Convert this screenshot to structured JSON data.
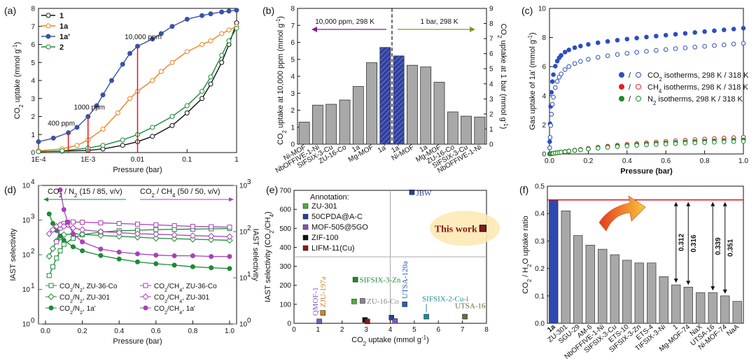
{
  "chart_data": [
    {
      "panel": "a",
      "type": "line",
      "panel_label": "(a)",
      "xlabel": "Pressure (bar)",
      "ylabel": "CO2 uptake (mmol g-1)",
      "xscale": "log",
      "xlim": [
        0.0001,
        1
      ],
      "ylim": [
        0,
        8
      ],
      "xticks": [
        "1E-4",
        "1E-3",
        "0.01",
        "0.1",
        "1"
      ],
      "yticks": [
        "0",
        "1",
        "2",
        "3",
        "4",
        "5",
        "6",
        "7",
        "8"
      ],
      "legend": [
        "1",
        "1a",
        "1a'",
        "2"
      ],
      "annotations": [
        "400 ppm",
        "1000 ppm",
        "10,000 ppm"
      ],
      "markers_p": [
        0.0004,
        0.001,
        0.01
      ],
      "series": [
        {
          "name": "1",
          "color": "#111111",
          "fill": false,
          "x": [
            0.0001,
            0.0003,
            0.001,
            0.002,
            0.005,
            0.01,
            0.02,
            0.05,
            0.1,
            0.2,
            0.3,
            0.5,
            0.7,
            1
          ],
          "y": [
            0.05,
            0.08,
            0.12,
            0.2,
            0.4,
            0.6,
            0.9,
            1.5,
            2.2,
            3.0,
            3.8,
            5.0,
            6.0,
            7.2
          ]
        },
        {
          "name": "1a",
          "color": "#f07f1e",
          "fill": false,
          "x": [
            0.0001,
            0.0003,
            0.0006,
            0.001,
            0.002,
            0.004,
            0.007,
            0.01,
            0.02,
            0.03,
            0.05,
            0.1,
            0.2,
            0.3,
            0.5,
            0.7,
            1
          ],
          "y": [
            0.1,
            0.2,
            0.4,
            0.7,
            1.3,
            2.2,
            3.0,
            3.4,
            4.0,
            4.5,
            5.0,
            5.6,
            6.0,
            6.2,
            6.6,
            6.8,
            7.0
          ]
        },
        {
          "name": "1a'",
          "color": "#3a52a6",
          "fill": true,
          "x": [
            0.0001,
            0.0002,
            0.0004,
            0.0006,
            0.001,
            0.0015,
            0.002,
            0.003,
            0.005,
            0.007,
            0.01,
            0.02,
            0.03,
            0.05,
            0.1,
            0.2,
            0.3,
            0.5,
            0.7,
            1
          ],
          "y": [
            0.6,
            0.8,
            1.1,
            1.4,
            2.0,
            2.6,
            3.2,
            4.0,
            4.9,
            5.5,
            5.9,
            6.3,
            6.6,
            7.0,
            7.4,
            7.6,
            7.7,
            7.8,
            7.85,
            7.9
          ]
        },
        {
          "name": "2",
          "color": "#1c8a36",
          "fill": false,
          "x": [
            0.0001,
            0.0003,
            0.001,
            0.002,
            0.005,
            0.01,
            0.02,
            0.05,
            0.1,
            0.2,
            0.3,
            0.5,
            0.7,
            1
          ],
          "y": [
            0.05,
            0.1,
            0.25,
            0.4,
            0.7,
            1.0,
            1.4,
            2.0,
            2.6,
            3.4,
            4.2,
            5.4,
            6.2,
            6.9
          ]
        }
      ]
    },
    {
      "panel": "b",
      "type": "bar",
      "panel_label": "(b)",
      "ylabel_left": "CO2 uptake at 10,000 ppm (mmol g-1)",
      "ylabel_right": "CO2 uptake at 1 bar (mmol g-1)",
      "ylim_left": [
        0,
        8
      ],
      "ylim_right": [
        0,
        9
      ],
      "yticks_left": [
        "0",
        "1",
        "2",
        "3",
        "4",
        "5",
        "6",
        "7",
        "8"
      ],
      "yticks_right": [
        "0",
        "1",
        "2",
        "3",
        "4",
        "5",
        "6",
        "7",
        "8",
        "9"
      ],
      "left_note": "10,000 ppm, 298 K",
      "right_note": "1 bar, 298 K",
      "categories": [
        "Ni-MOF",
        "NbOFFIVE-1-Ni",
        "SIFSIX-3-Cu",
        "ZU-16-Co",
        "1a",
        "Mg-MOF",
        "1a'",
        "1a'",
        "Ni-MOF",
        "1a",
        "Mg-MOF",
        "ZU-16-Co",
        "SIFSIX-3-Cu",
        "NbOFFIVE-1-Ni"
      ],
      "values": [
        1.3,
        2.3,
        2.35,
        2.6,
        3.4,
        4.8,
        5.7,
        5.2,
        4.65,
        4.55,
        3.65,
        1.9,
        1.65,
        1.6
      ],
      "highlight": [
        6,
        7
      ]
    },
    {
      "panel": "c",
      "type": "scatter",
      "panel_label": "(c)",
      "xlabel": "Pressure (bar)",
      "ylabel": "Gas uptake of 1a' (mmol g-1)",
      "xlim": [
        0,
        1
      ],
      "ylim": [
        0,
        10
      ],
      "xticks": [
        "0.0",
        "0.2",
        "0.4",
        "0.6",
        "0.8",
        "1.0"
      ],
      "yticks": [
        "0",
        "2",
        "4",
        "6",
        "8",
        "10"
      ],
      "legend": [
        "CO2 isotherms, 298 K / 318 K",
        "CH4 isotherms, 298 K / 318 K",
        "N2 isotherms, 298 K / 318 K"
      ],
      "series": [
        {
          "name": "CO2 298 K",
          "color": "#2d4ec0",
          "fill": "full",
          "ymax": 8.7,
          "k": 0.008,
          "lin": 1.1
        },
        {
          "name": "CO2 318 K",
          "color": "#2d4ec0",
          "fill": "none",
          "ymax": 7.7,
          "k": 0.015,
          "lin": 0.9
        },
        {
          "name": "CH4 298 K",
          "color": "#e02020",
          "fill": "half",
          "ymax": 2.5,
          "k": 0.8,
          "lin": 0
        },
        {
          "name": "CH4 318 K",
          "color": "#e02020",
          "fill": "none",
          "ymax": 2.3,
          "k": 1.0,
          "lin": 0
        },
        {
          "name": "N2 298 K",
          "color": "#1a8a2a",
          "fill": "half",
          "ymax": 1.6,
          "k": 1.5,
          "lin": 0
        },
        {
          "name": "N2 318 K",
          "color": "#1a8a2a",
          "fill": "none",
          "ymax": 1.4,
          "k": 1.6,
          "lin": 0
        }
      ]
    },
    {
      "panel": "d",
      "type": "line",
      "panel_label": "(d)",
      "xlabel": "Pressure (bar)",
      "ylabel_left": "IAST selectivity",
      "ylabel_right": "IAST selectivity",
      "xlim": [
        0,
        1
      ],
      "ylim_left_log": [
        0,
        4
      ],
      "ylim_right_log": [
        0,
        3
      ],
      "xticks": [
        "0.0",
        "0.2",
        "0.4",
        "0.6",
        "0.8",
        "1.0"
      ],
      "left_title": "CO2 / N2 (15 / 85, v/v)",
      "right_title": "CO2 / CH4 (50 / 50, v/v)",
      "legend": [
        "CO2/N2, ZU-36-Co",
        "CO2/N2, ZU-301",
        "CO2/N2, 1a'",
        "CO2/CH4, ZU-36-Co",
        "CO2/CH4, ZU-301",
        "CO2/CH4, 1a'"
      ],
      "series": [
        {
          "name": "CO2/N2, ZU-36-Co",
          "axis": "left",
          "color": "#1c8a36",
          "marker": "square",
          "fill": false,
          "x": [
            0.02,
            0.04,
            0.06,
            0.08,
            0.1,
            0.15,
            0.2,
            0.3,
            0.4,
            0.5,
            0.6,
            0.7,
            0.8,
            0.9,
            1.0
          ],
          "y": [
            25,
            45,
            80,
            130,
            200,
            300,
            380,
            450,
            490,
            510,
            530,
            540,
            550,
            560,
            570
          ]
        },
        {
          "name": "CO2/N2, ZU-301",
          "axis": "left",
          "color": "#1c8a36",
          "marker": "diamond",
          "fill": false,
          "x": [
            0.02,
            0.04,
            0.06,
            0.08,
            0.1,
            0.15,
            0.2,
            0.3,
            0.4,
            0.5,
            0.6,
            0.7,
            0.8,
            0.9,
            1.0
          ],
          "y": [
            90,
            150,
            250,
            320,
            380,
            400,
            390,
            360,
            340,
            320,
            300,
            290,
            280,
            270,
            260
          ]
        },
        {
          "name": "CO2/N2, 1a'",
          "axis": "left",
          "color": "#1c8a36",
          "marker": "circle",
          "fill": true,
          "x": [
            0.02,
            0.04,
            0.06,
            0.08,
            0.1,
            0.15,
            0.2,
            0.3,
            0.4,
            0.5,
            0.6,
            0.7,
            0.8,
            0.9,
            1.0
          ],
          "y": [
            1500,
            800,
            500,
            350,
            260,
            170,
            130,
            95,
            75,
            62,
            55,
            50,
            45,
            42,
            40
          ]
        },
        {
          "name": "CO2/CH4, ZU-36-Co",
          "axis": "right",
          "color": "#a642b8",
          "marker": "square",
          "fill": false,
          "x": [
            0.06,
            0.08,
            0.1,
            0.12,
            0.15,
            0.2,
            0.3,
            0.4,
            0.5,
            0.6,
            0.7,
            0.8,
            0.9,
            1.0
          ],
          "y": [
            60,
            120,
            150,
            160,
            162,
            160,
            155,
            150,
            145,
            140,
            135,
            130,
            128,
            125
          ]
        },
        {
          "name": "CO2/CH4, ZU-301",
          "axis": "right",
          "color": "#a642b8",
          "marker": "diamond",
          "fill": false,
          "x": [
            0.02,
            0.04,
            0.06,
            0.08,
            0.1,
            0.15,
            0.2,
            0.3,
            0.4,
            0.5,
            0.6,
            0.7,
            0.8,
            0.9,
            1.0
          ],
          "y": [
            90,
            110,
            130,
            140,
            130,
            120,
            110,
            100,
            95,
            90,
            88,
            85,
            82,
            80,
            78
          ]
        },
        {
          "name": "CO2/CH4, 1a'",
          "axis": "right",
          "color": "#a642b8",
          "marker": "circle",
          "fill": true,
          "x": [
            0.08,
            0.1,
            0.12,
            0.15,
            0.2,
            0.3,
            0.4,
            0.5,
            0.6,
            0.7,
            0.8,
            0.9,
            1.0
          ],
          "y": [
            800,
            300,
            160,
            90,
            60,
            42,
            36,
            33,
            31,
            30,
            30,
            29,
            29
          ]
        }
      ]
    },
    {
      "panel": "e",
      "type": "scatter",
      "panel_label": "(e)",
      "xlabel": "CO2 uptake (mmol g-1)",
      "ylabel": "IAST selectivity (CO2/CH4)",
      "xlim": [
        0,
        8
      ],
      "ylim": [
        0,
        700
      ],
      "xticks": [
        "0",
        "1",
        "2",
        "3",
        "4",
        "5",
        "6",
        "7",
        "8"
      ],
      "yticks": [
        "0",
        "100",
        "200",
        "300",
        "400",
        "500",
        "600",
        "700"
      ],
      "annotation_title": "Annotation:",
      "annotation_items": [
        {
          "label": "ZU-301",
          "color": "#4caf3a"
        },
        {
          "label": "50CPDA@A-C",
          "color": "#2b3f9a"
        },
        {
          "label": "MOF-505@5GO",
          "color": "#7e57c2"
        },
        {
          "label": "ZIF-100",
          "color": "#111111"
        },
        {
          "label": "LIFM-11(Cu)",
          "color": "#8b1a1a"
        }
      ],
      "highlight_label": "This work",
      "points": [
        {
          "label": "JBW",
          "x": 4.9,
          "y": 690,
          "color": "#2b3f9a"
        },
        {
          "label": "This work",
          "x": 7.85,
          "y": 500,
          "color": "#8b1a1a"
        },
        {
          "label": "SIFSIX-3-Zn",
          "x": 2.55,
          "y": 230,
          "color": "#1c8a36"
        },
        {
          "label": "",
          "x": 2.5,
          "y": 115,
          "color": "#4caf3a"
        },
        {
          "label": "ZU-16-Co",
          "x": 2.85,
          "y": 118,
          "color": "#888888"
        },
        {
          "label": "UTSA-120a",
          "x": 4.6,
          "y": 100,
          "color": "#2a5fb0"
        },
        {
          "label": "SIFSIX-2-Cu-i",
          "x": 5.5,
          "y": 35,
          "color": "#1e8c96"
        },
        {
          "label": "UTSA-16",
          "x": 7.1,
          "y": 35,
          "color": "#6b6b3a"
        },
        {
          "label": "QMOF-1",
          "x": 1.05,
          "y": 10,
          "color": "#7e57c2"
        },
        {
          "label": "ZJU-197a",
          "x": 1.2,
          "y": 55,
          "color": "#c8872a"
        },
        {
          "label": "",
          "x": 2.95,
          "y": 18,
          "color": "#111111"
        },
        {
          "label": "",
          "x": 3.05,
          "y": 10,
          "color": "#8b1a1a"
        },
        {
          "label": "",
          "x": 4.05,
          "y": 30,
          "color": "#2b3f9a"
        },
        {
          "label": "",
          "x": 4.2,
          "y": 12,
          "color": "#7e57c2"
        }
      ]
    },
    {
      "panel": "f",
      "type": "bar",
      "panel_label": "(f)",
      "ylabel": "CO2 / H2O uptake ratio",
      "ylim": [
        0,
        0.5
      ],
      "yticks": [
        "0.0",
        "0.1",
        "0.2",
        "0.3",
        "0.4",
        "0.5"
      ],
      "categories": [
        "1a",
        "ZU-301",
        "SGU-29",
        "AM-6",
        "NbOFFIVE-1-Ni",
        "SIFSIX-3-Cu",
        "ETS-10",
        "SIFSIX-3-Zn",
        "ETS-4",
        "TIFSIX-3-Ni",
        "1",
        "Mg-MOF-74",
        "NaX",
        "UTSA-16",
        "Ni-MOF-74",
        "NaA"
      ],
      "values": [
        0.45,
        0.41,
        0.32,
        0.285,
        0.27,
        0.25,
        0.23,
        0.22,
        0.22,
        0.17,
        0.14,
        0.132,
        0.112,
        0.112,
        0.1,
        0.08
      ],
      "reference_line": 0.45,
      "gap_labels": [
        "0.312",
        "0.316",
        "0.339",
        "0.351"
      ]
    }
  ]
}
